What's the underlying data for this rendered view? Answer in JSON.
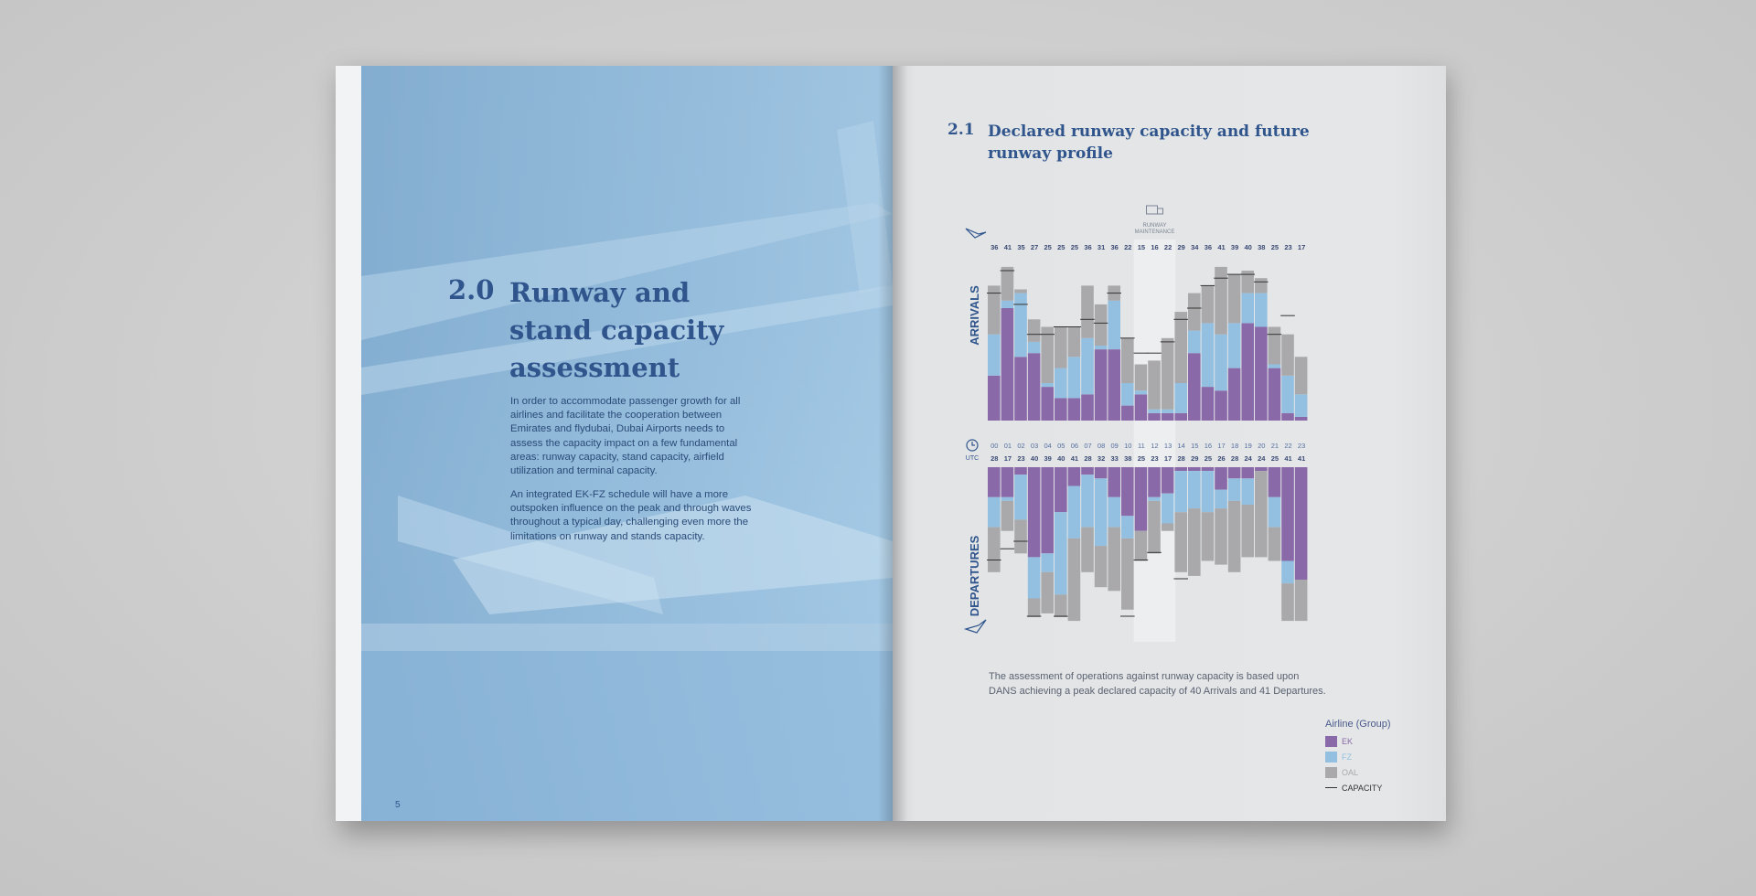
{
  "left_page": {
    "section_number": "2.0",
    "title_lines": [
      "Runway and",
      "stand capacity",
      "assessment"
    ],
    "paragraph1": "In order to accommodate passenger growth for all airlines and facilitate the cooperation between Emirates and flydubai, Dubai Airports needs to assess the capacity impact on a few fundamental areas: runway capacity, stand capacity, airfield utilization and terminal capacity.",
    "paragraph2": "An integrated EK-FZ schedule will have a more outspoken influence on the peak and through waves throughout a typical day, challenging even more the limitations on runway and stands capacity.",
    "page_number": "5"
  },
  "right_page": {
    "section_number": "2.1",
    "title_lines": [
      "Declared runway capacity and future",
      "runway profile"
    ],
    "note_lines": [
      "The assessment of operations against runway capacity is based upon",
      "DANS achieving a peak declared capacity of 40 Arrivals and 41 Departures."
    ],
    "maintenance_label_lines": [
      "RUNWAY",
      "MAINTENANCE"
    ],
    "utc_label": "UTC",
    "legend": {
      "title": "Airline (Group)",
      "items": [
        "EK",
        "FZ",
        "OAL",
        "CAPACITY"
      ]
    }
  },
  "colors": {
    "EK": "#8a69a8",
    "FZ": "#93c0e0",
    "OAL": "#a9a9ab",
    "capacity": "#333333",
    "title": "#2f558c"
  },
  "chart_data": {
    "type": "bar",
    "stacked": true,
    "categories": [
      "00",
      "01",
      "02",
      "03",
      "04",
      "05",
      "06",
      "07",
      "08",
      "09",
      "10",
      "11",
      "12",
      "13",
      "14",
      "15",
      "16",
      "17",
      "18",
      "19",
      "20",
      "21",
      "22",
      "23"
    ],
    "maintenance_hours": [
      "11",
      "12",
      "13"
    ],
    "arrivals": {
      "label": "ARRIVALS",
      "totals": [
        36,
        41,
        35,
        27,
        25,
        25,
        25,
        36,
        31,
        36,
        22,
        15,
        16,
        22,
        29,
        34,
        36,
        41,
        39,
        40,
        38,
        25,
        23,
        17
      ],
      "series": [
        {
          "name": "EK",
          "values": [
            12,
            30,
            17,
            18,
            9,
            6,
            6,
            7,
            19,
            19,
            4,
            7,
            2,
            2,
            2,
            18,
            9,
            8,
            14,
            26,
            25,
            14,
            2,
            1
          ]
        },
        {
          "name": "FZ",
          "values": [
            11,
            2,
            17,
            3,
            1,
            8,
            11,
            15,
            1,
            13,
            6,
            1,
            1,
            1,
            8,
            6,
            17,
            15,
            12,
            8,
            9,
            1,
            10,
            6
          ]
        },
        {
          "name": "OAL",
          "values": [
            13,
            9,
            1,
            6,
            15,
            11,
            8,
            14,
            11,
            4,
            12,
            7,
            13,
            19,
            19,
            10,
            10,
            18,
            13,
            6,
            4,
            10,
            11,
            10
          ]
        }
      ],
      "capacity": [
        34,
        40,
        31,
        23,
        23,
        25,
        25,
        27,
        26,
        34,
        22,
        18,
        18,
        21,
        27,
        30,
        36,
        38,
        39,
        39,
        37,
        23,
        28,
        null
      ]
    },
    "departures": {
      "label": "DEPARTURES",
      "totals": [
        28,
        17,
        23,
        40,
        39,
        40,
        41,
        28,
        32,
        33,
        38,
        25,
        23,
        17,
        28,
        29,
        25,
        26,
        28,
        24,
        24,
        25,
        41,
        41
      ],
      "series": [
        {
          "name": "EK",
          "values": [
            8,
            8,
            2,
            24,
            23,
            12,
            5,
            2,
            3,
            8,
            13,
            17,
            8,
            7,
            1,
            1,
            1,
            6,
            3,
            3,
            1,
            8,
            25,
            30
          ]
        },
        {
          "name": "FZ",
          "values": [
            8,
            1,
            12,
            11,
            5,
            22,
            14,
            14,
            18,
            8,
            6,
            0,
            1,
            8,
            11,
            10,
            11,
            5,
            6,
            7,
            0,
            8,
            6,
            0
          ]
        },
        {
          "name": "OAL",
          "values": [
            12,
            8,
            9,
            5,
            11,
            6,
            22,
            12,
            11,
            17,
            19,
            8,
            14,
            2,
            16,
            18,
            13,
            15,
            19,
            14,
            23,
            9,
            10,
            11
          ]
        }
      ],
      "capacity": [
        25,
        22,
        20,
        40,
        null,
        40,
        null,
        null,
        null,
        null,
        40,
        25,
        23,
        null,
        30,
        null,
        null,
        null,
        null,
        null,
        null,
        null,
        null,
        null
      ]
    },
    "ylim": [
      0,
      42
    ]
  }
}
